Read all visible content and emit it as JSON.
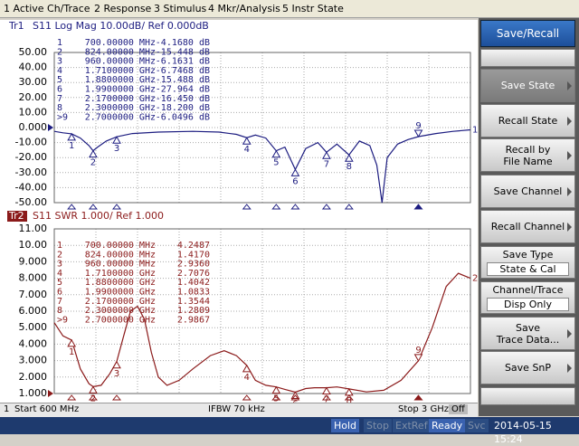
{
  "menu": [
    "1 Active Ch/Trace",
    "2 Response",
    "3 Stimulus",
    "4 Mkr/Analysis",
    "5 Instr State"
  ],
  "charts": [
    {
      "type": "line",
      "trace": "Tr1",
      "header": "S11 Log Mag 10.00dB/ Ref 0.000dB",
      "trace_number": "1",
      "color": "#1c1c80",
      "xlim": [
        600,
        3000
      ],
      "xticks": [
        600,
        840,
        1080,
        1320,
        1560,
        1800,
        2040,
        2280,
        2520,
        2760,
        3000
      ],
      "ylim": [
        -50,
        50
      ],
      "yticks": [
        {
          "value": 50,
          "label": "50.00"
        },
        {
          "value": 40,
          "label": "40.00"
        },
        {
          "value": 30,
          "label": "30.00"
        },
        {
          "value": 20,
          "label": "20.00"
        },
        {
          "value": 10,
          "label": "10.00"
        },
        {
          "value": 0,
          "label": "0.000"
        },
        {
          "value": -10,
          "label": "-10.00"
        },
        {
          "value": -20,
          "label": "-20.00"
        },
        {
          "value": -30,
          "label": "-30.00"
        },
        {
          "value": -40,
          "label": "-40.00"
        },
        {
          "value": -50,
          "label": "-50.00"
        }
      ],
      "grid": true,
      "x": [
        600,
        650,
        700,
        750,
        800,
        824,
        850,
        900,
        960,
        1050,
        1200,
        1400,
        1550,
        1650,
        1710,
        1760,
        1820,
        1880,
        1930,
        1990,
        2050,
        2120,
        2170,
        2230,
        2300,
        2360,
        2420,
        2460,
        2490,
        2520,
        2580,
        2640,
        2700,
        2800,
        2900,
        3000
      ],
      "values": [
        -2.5,
        -3.5,
        -4.17,
        -7,
        -12,
        -15.45,
        -13,
        -9,
        -6.16,
        -4,
        -3,
        -2.5,
        -3,
        -4.5,
        -6.75,
        -5,
        -7,
        -15.49,
        -13,
        -27.96,
        -14,
        -10,
        -16.45,
        -11,
        -18.2,
        -9,
        -12,
        -25,
        -50,
        -20,
        -11,
        -8,
        -6.05,
        -4,
        -2.5,
        -1.5
      ],
      "markers": [
        {
          "flag": "1",
          "x": 700,
          "value": -4.168
        },
        {
          "flag": "2",
          "x": 824,
          "value": -15.448
        },
        {
          "flag": "3",
          "x": 960,
          "value": -6.1631
        },
        {
          "flag": "4",
          "x": 1710,
          "value": -6.7468
        },
        {
          "flag": "5",
          "x": 1880,
          "value": -15.488
        },
        {
          "flag": "6",
          "x": 1990,
          "value": -27.964
        },
        {
          "flag": "7",
          "x": 2170,
          "value": -16.45
        },
        {
          "flag": "8",
          "x": 2300,
          "value": -18.2
        },
        {
          "flag": "9",
          "x": 2700,
          "value": -6.0496
        }
      ],
      "marker_table": [
        [
          "1",
          "700.00000 MHz",
          "-4.1680 dB"
        ],
        [
          "2",
          "824.00000 MHz",
          "-15.448 dB"
        ],
        [
          "3",
          "960.00000 MHz",
          "-6.1631 dB"
        ],
        [
          "4",
          "1.7100000 GHz",
          "-6.7468 dB"
        ],
        [
          "5",
          "1.8800000 GHz",
          "-15.488 dB"
        ],
        [
          "6",
          "1.9900000 GHz",
          "-27.964 dB"
        ],
        [
          "7",
          "2.1700000 GHz",
          "-16.450 dB"
        ],
        [
          "8",
          "2.3000000 GHz",
          "-18.200 dB"
        ],
        [
          ">9",
          "2.7000000 GHz",
          "-6.0496 dB"
        ]
      ]
    },
    {
      "type": "line",
      "trace": "Tr2",
      "header": "S11 SWR 1.000/ Ref 1.000",
      "trace_number": "2",
      "color": "#8b1a1a",
      "xlim": [
        600,
        3000
      ],
      "xticks": [
        600,
        840,
        1080,
        1320,
        1560,
        1800,
        2040,
        2280,
        2520,
        2760,
        3000
      ],
      "ylim": [
        1,
        11
      ],
      "yticks": [
        {
          "value": 11,
          "label": "11.00"
        },
        {
          "value": 10,
          "label": "10.00"
        },
        {
          "value": 9,
          "label": "9.000"
        },
        {
          "value": 8,
          "label": "8.000"
        },
        {
          "value": 7,
          "label": "7.000"
        },
        {
          "value": 6,
          "label": "6.000"
        },
        {
          "value": 5,
          "label": "5.000"
        },
        {
          "value": 4,
          "label": "4.000"
        },
        {
          "value": 3,
          "label": "3.000"
        },
        {
          "value": 2,
          "label": "2.000"
        },
        {
          "value": 1,
          "label": "1.000"
        }
      ],
      "grid": true,
      "x": [
        600,
        650,
        700,
        750,
        800,
        824,
        870,
        920,
        960,
        1000,
        1040,
        1080,
        1120,
        1160,
        1200,
        1250,
        1320,
        1400,
        1500,
        1580,
        1650,
        1710,
        1760,
        1820,
        1880,
        1930,
        1990,
        2050,
        2100,
        2170,
        2230,
        2300,
        2400,
        2500,
        2600,
        2700,
        2780,
        2860,
        2930,
        3000
      ],
      "values": [
        5.3,
        4.5,
        4.25,
        2.5,
        1.6,
        1.42,
        1.5,
        2.2,
        2.94,
        4.5,
        6.0,
        6.3,
        5.5,
        3.5,
        2.0,
        1.5,
        1.8,
        2.5,
        3.3,
        3.6,
        3.3,
        2.71,
        1.8,
        1.5,
        1.4,
        1.25,
        1.08,
        1.3,
        1.35,
        1.35,
        1.4,
        1.28,
        1.1,
        1.2,
        1.8,
        2.99,
        5,
        7.5,
        8.3,
        8.0
      ],
      "markers": [
        {
          "flag": "1",
          "x": 700,
          "value": 4.2487
        },
        {
          "flag": "2",
          "x": 824,
          "value": 1.417
        },
        {
          "flag": "3",
          "x": 960,
          "value": 2.936
        },
        {
          "flag": "4",
          "x": 1710,
          "value": 2.7076
        },
        {
          "flag": "5",
          "x": 1880,
          "value": 1.4042
        },
        {
          "flag": "6",
          "x": 1990,
          "value": 1.0833
        },
        {
          "flag": "7",
          "x": 2170,
          "value": 1.3544
        },
        {
          "flag": "8",
          "x": 2300,
          "value": 1.2809
        },
        {
          "flag": "9",
          "x": 2700,
          "value": 2.9867
        }
      ],
      "marker_table": [
        [
          "1",
          "700.00000 MHz",
          "4.2487"
        ],
        [
          "2",
          "824.00000 MHz",
          "1.4170"
        ],
        [
          "3",
          "960.00000 MHz",
          "2.9360"
        ],
        [
          "4",
          "1.7100000 GHz",
          "2.7076"
        ],
        [
          "5",
          "1.8800000 GHz",
          "1.4042"
        ],
        [
          "6",
          "1.9900000 GHz",
          "1.0833"
        ],
        [
          "7",
          "2.1700000 GHz",
          "1.3544"
        ],
        [
          "8",
          "2.3000000 GHz",
          "1.2809"
        ],
        [
          ">9",
          "2.7000000 GHz",
          "2.9867"
        ]
      ]
    }
  ],
  "status": {
    "channel": "1",
    "start": "Start 600 MHz",
    "ifbw": "IFBW 70 kHz",
    "stop": "Stop 3 GHz",
    "off": "Off"
  },
  "bottom_bar": [
    "Hold",
    "Stop",
    "ExtRef",
    "Ready",
    "Svc",
    "2014-05-15 15:24"
  ],
  "softkeys": {
    "title": "Save/Recall",
    "buttons": [
      {
        "label": [
          "Save State"
        ]
      },
      {
        "label": [
          "Recall State"
        ]
      },
      {
        "label": [
          "Recall by",
          "File Name"
        ]
      },
      {
        "label": [
          "Save Channel"
        ]
      },
      {
        "label": [
          "Recall Channel"
        ]
      },
      {
        "label": [
          "Save Type"
        ],
        "value": "State & Cal"
      },
      {
        "label": [
          "Channel/Trace"
        ],
        "value": "Disp Only"
      },
      {
        "label": [
          "Save",
          "Trace Data..."
        ]
      },
      {
        "label": [
          "Save SnP"
        ]
      }
    ]
  }
}
